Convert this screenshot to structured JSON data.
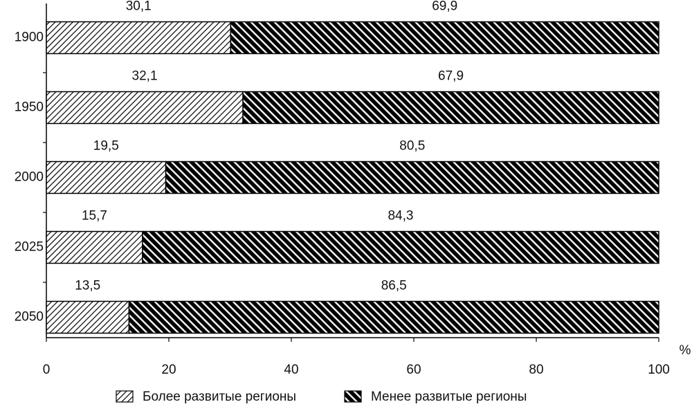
{
  "chart_data": {
    "type": "stacked-barh",
    "categories": [
      "1900",
      "1950",
      "2000",
      "2025",
      "2050"
    ],
    "series": [
      {
        "name": "Более развитые регионы",
        "color": "#000000",
        "hatch": "forward",
        "values": [
          30.1,
          32.1,
          19.5,
          15.7,
          13.5
        ],
        "value_labels": [
          "30,1",
          "32,1",
          "19,5",
          "15,7",
          "13,5"
        ]
      },
      {
        "name": "Менее развитые регионы",
        "color": "#000000",
        "hatch": "back",
        "values": [
          69.9,
          67.9,
          80.5,
          84.3,
          86.5
        ],
        "value_labels": [
          "69,9",
          "67,9",
          "80,5",
          "84,3",
          "86,5"
        ]
      }
    ],
    "x_label": "%",
    "xlim": [
      0,
      100
    ],
    "xticks": [
      0,
      20,
      40,
      60,
      80,
      100
    ],
    "legend": "bottom"
  }
}
